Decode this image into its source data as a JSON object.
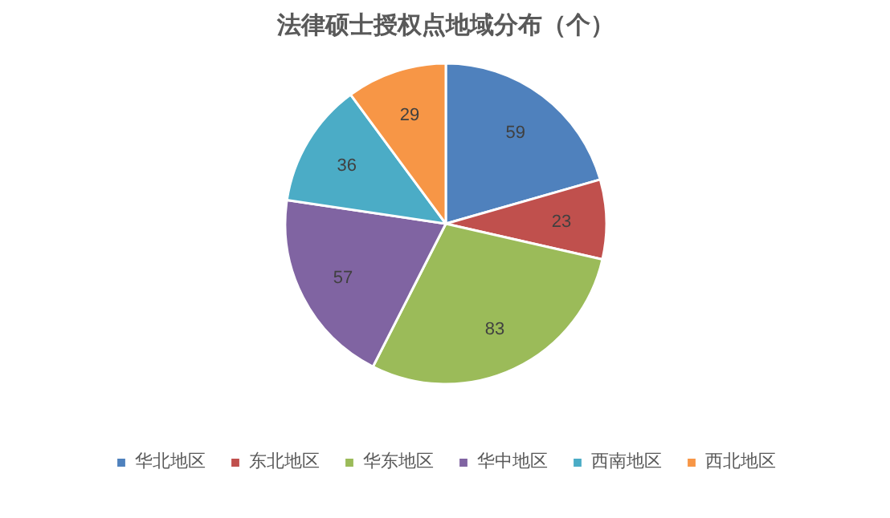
{
  "chart_data": {
    "type": "pie",
    "title": "法律硕士授权点地域分布（个）",
    "categories": [
      "华北地区",
      "东北地区",
      "华东地区",
      "华中地区",
      "西南地区",
      "西北地区"
    ],
    "values": [
      59,
      23,
      83,
      57,
      36,
      29
    ],
    "colors": [
      "#4f81bd",
      "#c0504d",
      "#9bbb59",
      "#8064a2",
      "#4bacc6",
      "#f79646"
    ],
    "data_labels": true,
    "legend": "bottom"
  }
}
